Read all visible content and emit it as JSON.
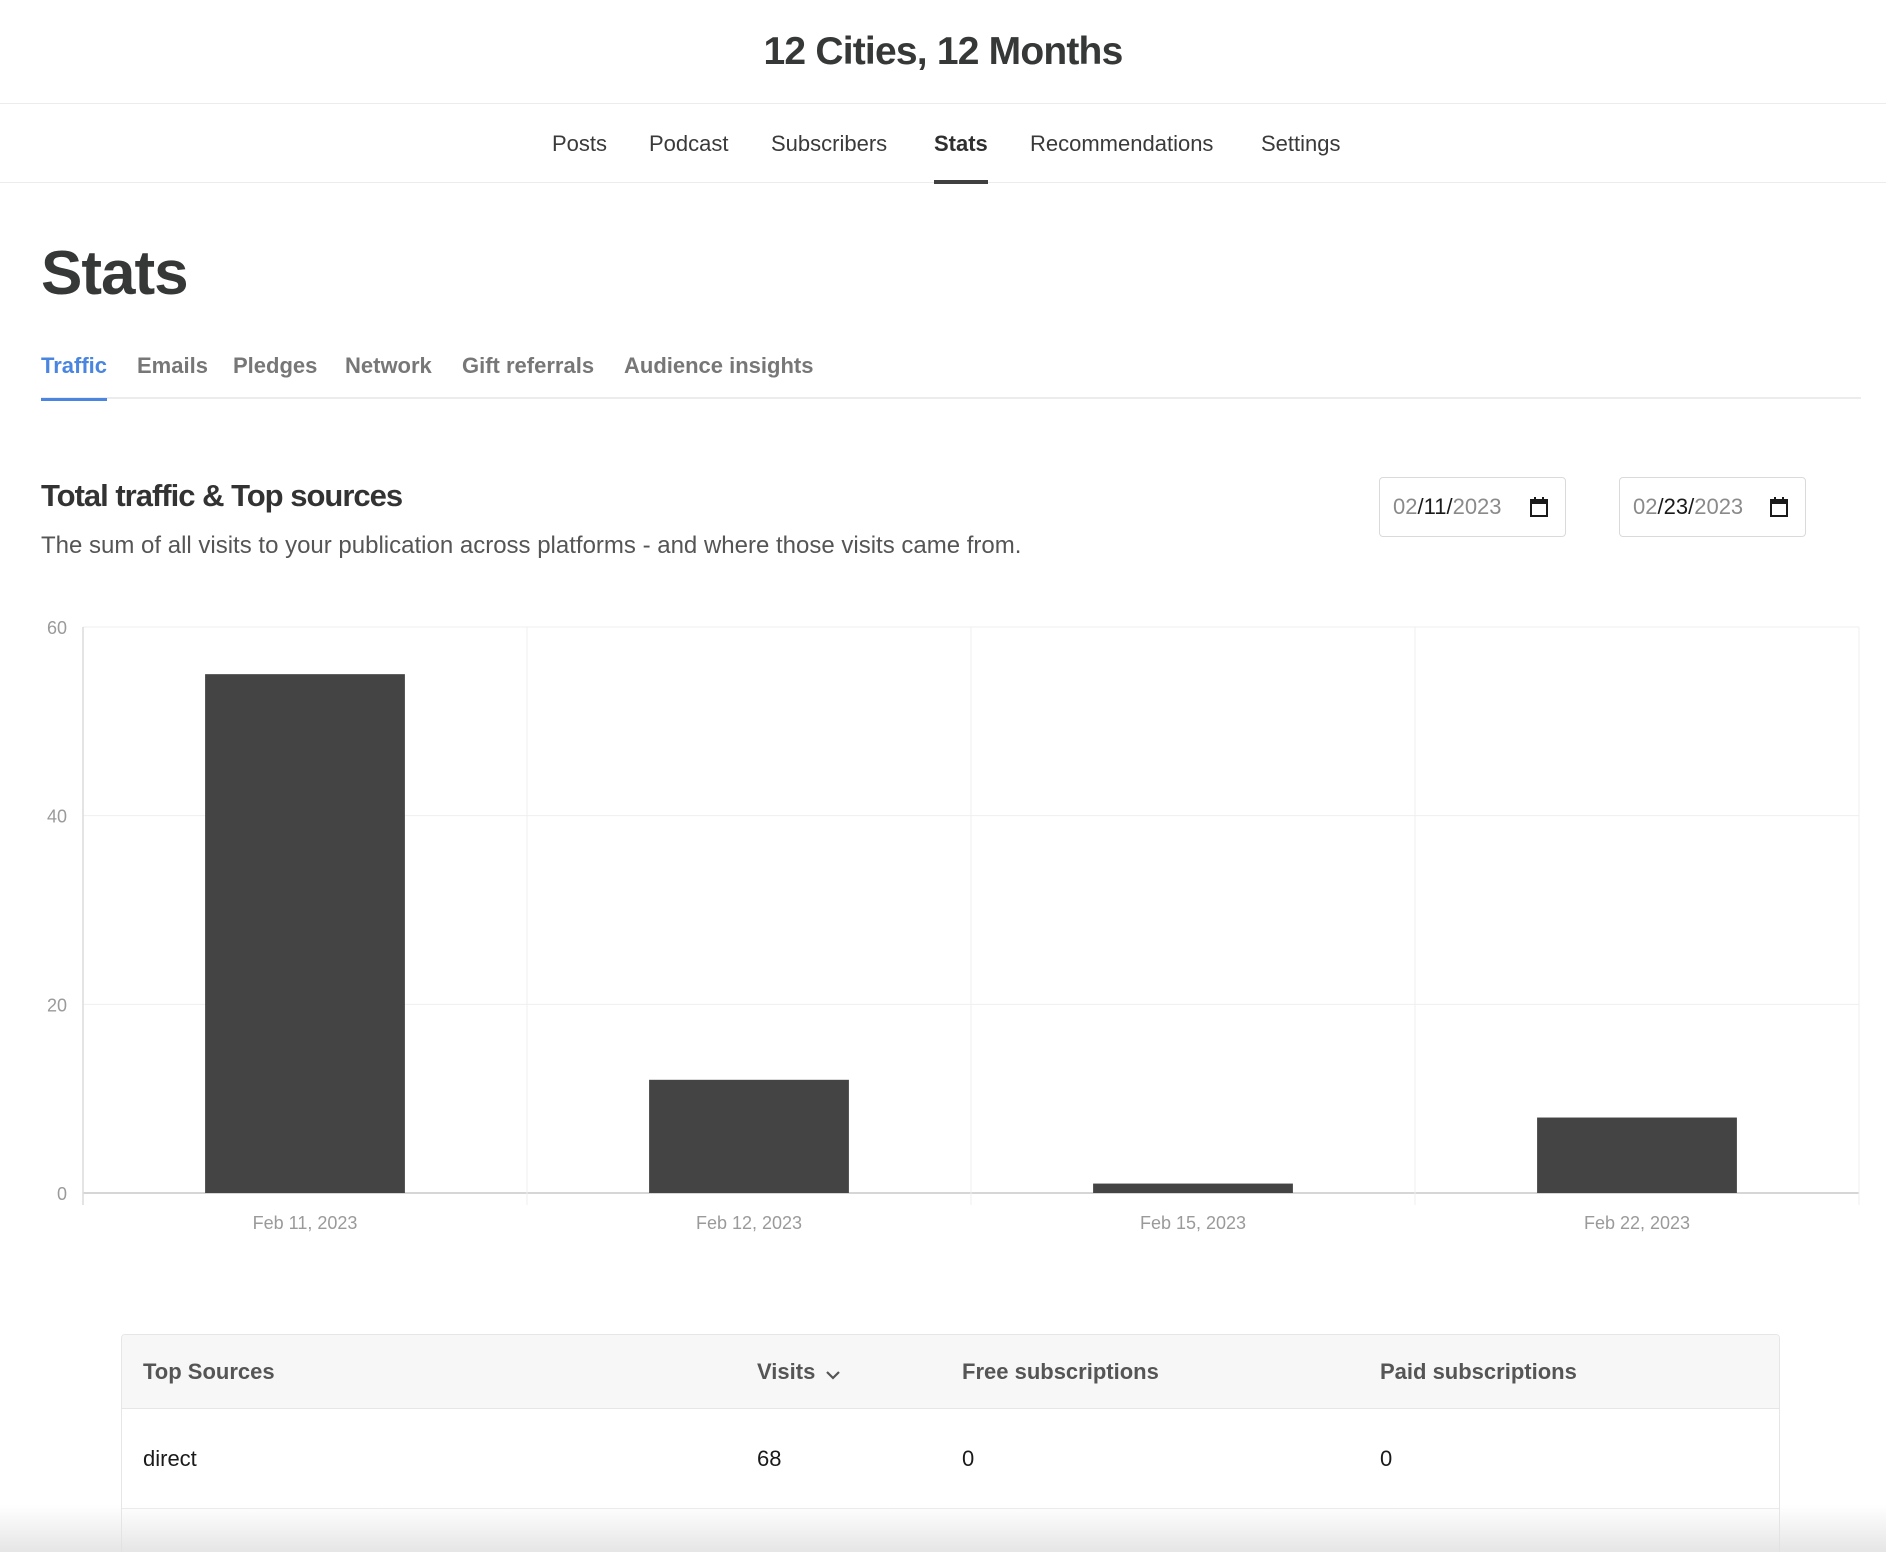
{
  "publication": {
    "title": "12 Cities, 12 Months"
  },
  "nav": {
    "tabs": [
      {
        "label": "Posts"
      },
      {
        "label": "Podcast"
      },
      {
        "label": "Subscribers"
      },
      {
        "label": "Stats"
      },
      {
        "label": "Recommendations"
      },
      {
        "label": "Settings"
      }
    ],
    "active": "Stats"
  },
  "page": {
    "title": "Stats"
  },
  "stats_tabs": {
    "tabs": [
      {
        "label": "Traffic"
      },
      {
        "label": "Emails"
      },
      {
        "label": "Pledges"
      },
      {
        "label": "Network"
      },
      {
        "label": "Gift referrals"
      },
      {
        "label": "Audience insights"
      }
    ],
    "active": "Traffic"
  },
  "traffic": {
    "title": "Total traffic & Top sources",
    "description": "The sum of all visits to your publication across platforms - and where those visits came from.",
    "date_from": {
      "month": "02",
      "day": "11",
      "year": "2023"
    },
    "date_to": {
      "month": "02",
      "day": "23",
      "year": "2023"
    }
  },
  "chart_data": {
    "type": "bar",
    "categories": [
      "Feb 11, 2023",
      "Feb 12, 2023",
      "Feb 15, 2023",
      "Feb 22, 2023"
    ],
    "values": [
      55,
      12,
      1,
      8
    ],
    "ylim": [
      0,
      60
    ],
    "yticks": [
      0,
      20,
      40,
      60
    ],
    "grid": true,
    "bar_color": "#444444",
    "title": "",
    "xlabel": "",
    "ylabel": ""
  },
  "top_sources": {
    "columns": {
      "source": "Top Sources",
      "visits": "Visits",
      "free": "Free subscriptions",
      "paid": "Paid subscriptions"
    },
    "rows": [
      {
        "source": "direct",
        "visits": "68",
        "free": "0",
        "paid": "0"
      }
    ]
  },
  "colors": {
    "accent": "#4a86e0",
    "text": "#363737",
    "bar": "#444444"
  }
}
